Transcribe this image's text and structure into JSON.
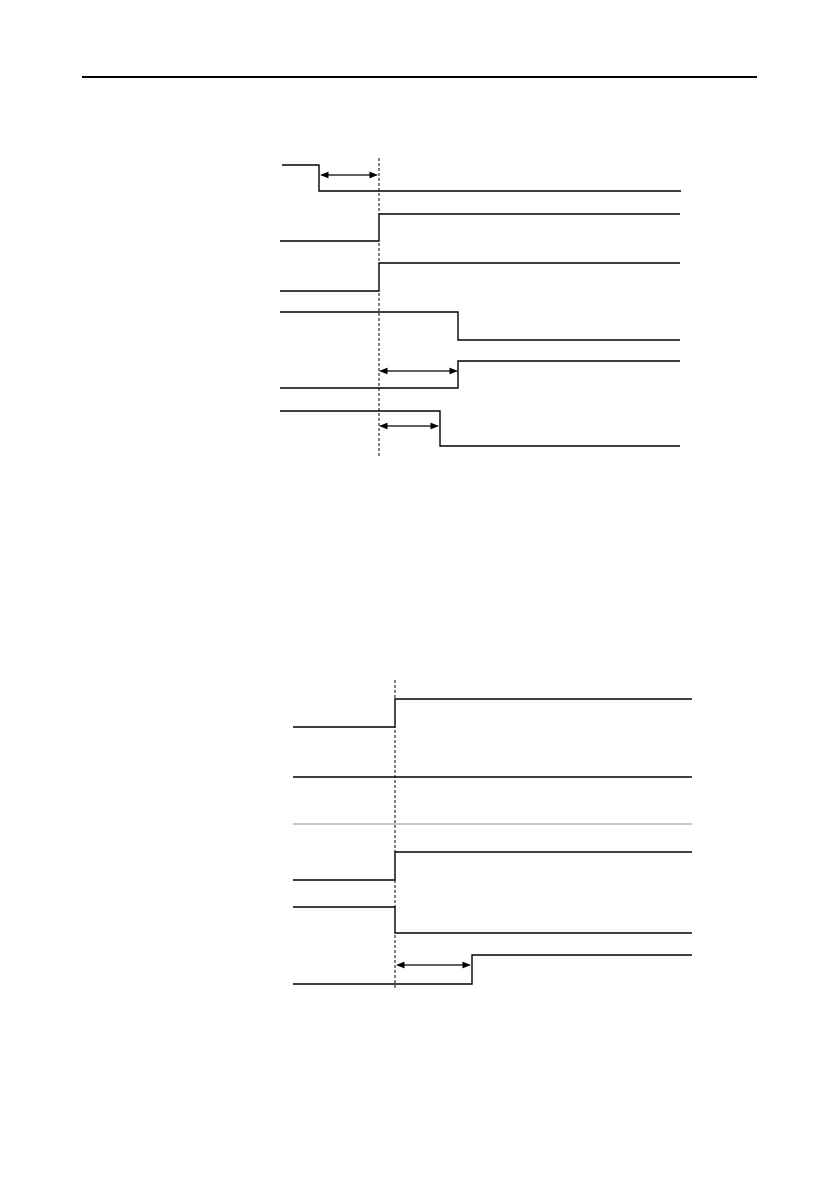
{
  "page": {
    "colors": {
      "ink": "#000000",
      "background": "#ffffff",
      "faint_line": "#b5b5b5"
    }
  },
  "diagrams": [
    {
      "type": "timing-diagram",
      "signals": [
        {
          "start": "high",
          "transition": "falling",
          "marked_delay": true,
          "delay_before_reference": true
        },
        {
          "start": "low",
          "transition": "rising",
          "at": "reference"
        },
        {
          "start": "low",
          "transition": "rising",
          "at": "reference"
        },
        {
          "start": "high",
          "transition": "falling",
          "after_reference": true
        },
        {
          "start": "low",
          "transition": "rising",
          "after_reference": true,
          "marked_delay": true
        },
        {
          "start": "high",
          "transition": "falling",
          "after_reference": true,
          "marked_delay": true
        }
      ]
    },
    {
      "type": "timing-diagram",
      "signals": [
        {
          "start": "low",
          "transition": "rising",
          "at": "reference"
        },
        {
          "start": "high",
          "transition": "none"
        },
        {
          "start": "low",
          "transition": "none",
          "faint": true
        },
        {
          "start": "low",
          "transition": "rising",
          "at": "reference"
        },
        {
          "start": "high",
          "transition": "falling",
          "at": "reference"
        },
        {
          "start": "low",
          "transition": "rising",
          "after_reference": true,
          "marked_delay": true
        }
      ]
    }
  ]
}
